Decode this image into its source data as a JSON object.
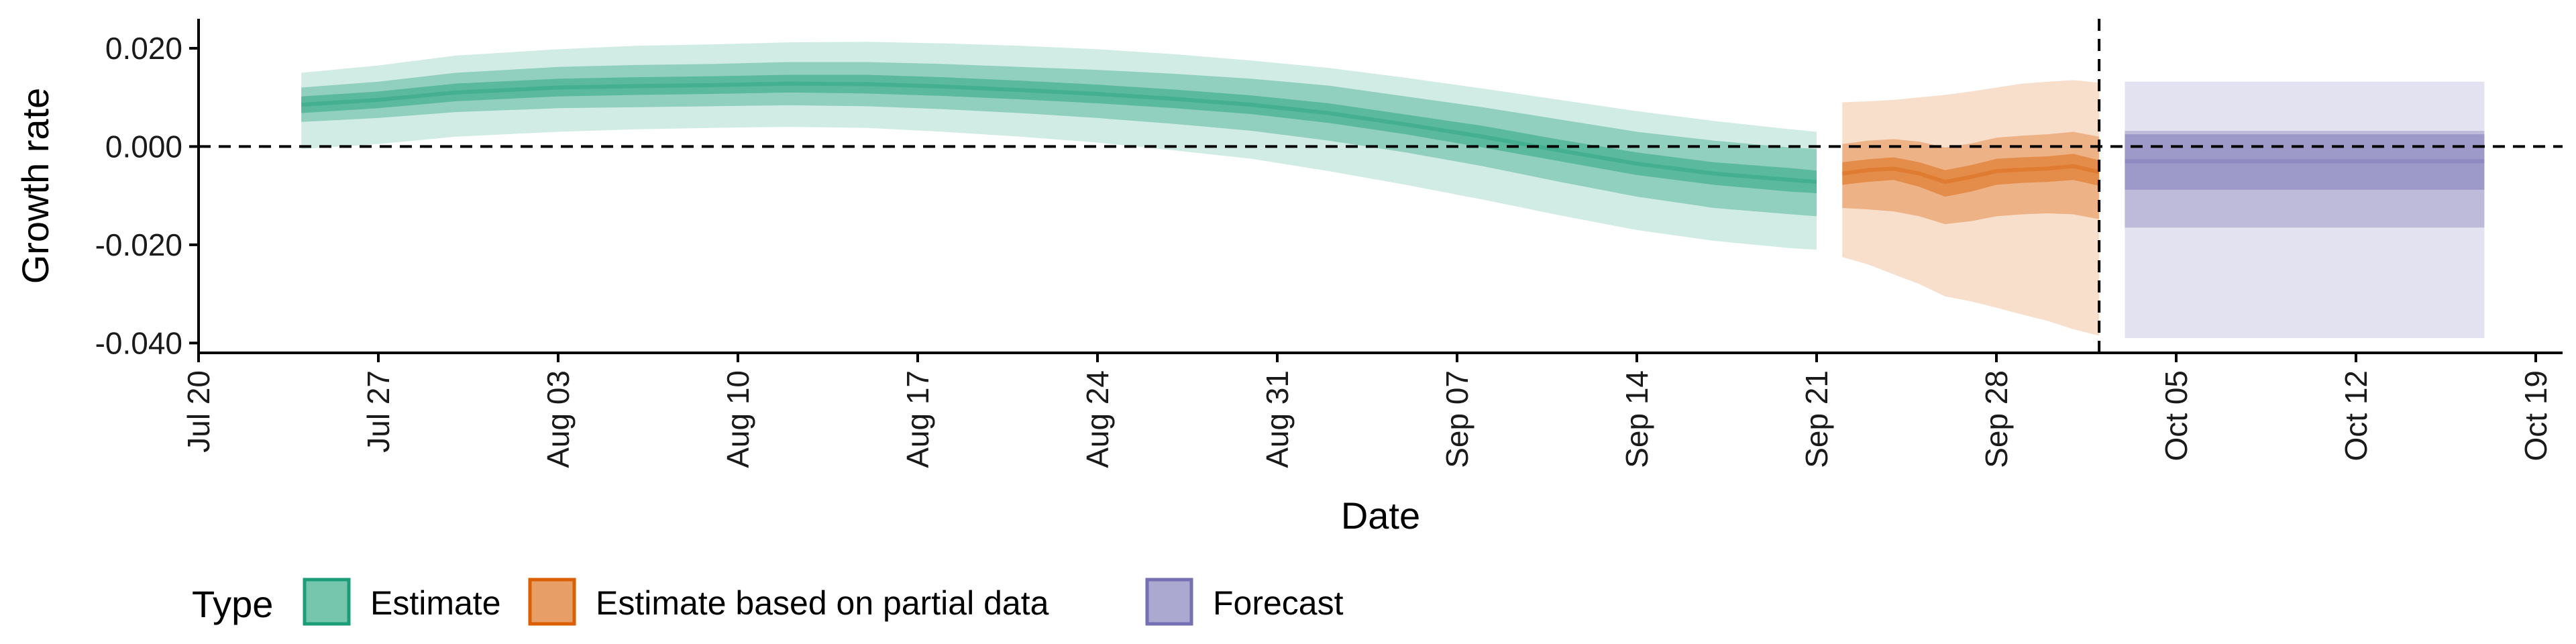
{
  "chart_data": {
    "type": "area",
    "xlabel": "Date",
    "ylabel": "Growth rate",
    "x_ticks": [
      "2020-07-20",
      "2020-07-27",
      "2020-08-03",
      "2020-08-10",
      "2020-08-17",
      "2020-08-24",
      "2020-08-31",
      "2020-09-07",
      "2020-09-14",
      "2020-09-21",
      "2020-09-28",
      "2020-10-05",
      "2020-10-12",
      "2020-10-19"
    ],
    "x_tick_labels": [
      "Jul 20",
      "Jul 27",
      "Aug 03",
      "Aug 10",
      "Aug 17",
      "Aug 24",
      "Aug 31",
      "Sep 07",
      "Sep 14",
      "Sep 21",
      "Sep 28",
      "Oct 05",
      "Oct 12",
      "Oct 19"
    ],
    "xlim": [
      "2020-07-20",
      "2020-10-19"
    ],
    "ylim": [
      -0.042,
      0.026
    ],
    "y_ticks": [
      0.02,
      0.0,
      -0.02,
      -0.04
    ],
    "y_tick_labels": [
      "0.020",
      "0.000",
      "-0.020",
      "-0.040"
    ],
    "reference_lines": [
      {
        "axis": "y",
        "value": 0.0,
        "style": "dashed"
      },
      {
        "axis": "x",
        "value": "2020-10-02",
        "style": "dashed"
      }
    ],
    "legend": {
      "title": "Type",
      "placement": "bottom",
      "entries": [
        "Estimate",
        "Estimate based on partial data",
        "Forecast"
      ]
    },
    "colors": {
      "Estimate": "#1b9e77",
      "Estimate based on partial data": "#d95f02",
      "Forecast": "#7570b3"
    },
    "series": [
      {
        "name": "Estimate",
        "x": [
          "2020-07-24",
          "2020-07-27",
          "2020-07-30",
          "2020-08-03",
          "2020-08-06",
          "2020-08-09",
          "2020-08-12",
          "2020-08-15",
          "2020-08-18",
          "2020-08-21",
          "2020-08-24",
          "2020-08-27",
          "2020-08-30",
          "2020-09-02",
          "2020-09-05",
          "2020-09-08",
          "2020-09-11",
          "2020-09-14",
          "2020-09-17",
          "2020-09-20",
          "2020-09-21"
        ],
        "median": [
          0.0085,
          0.0095,
          0.011,
          0.012,
          0.0123,
          0.0125,
          0.0128,
          0.0127,
          0.0122,
          0.0115,
          0.0107,
          0.0097,
          0.0085,
          0.0068,
          0.0045,
          0.002,
          -0.0008,
          -0.0035,
          -0.0055,
          -0.0068,
          -0.0072
        ],
        "lower_20": [
          0.0068,
          0.0078,
          0.0092,
          0.0102,
          0.0105,
          0.0107,
          0.011,
          0.0108,
          0.0103,
          0.0096,
          0.0088,
          0.0078,
          0.0066,
          0.0048,
          0.0025,
          -0.0002,
          -0.003,
          -0.0058,
          -0.0078,
          -0.0092,
          -0.0095
        ],
        "upper_20": [
          0.0102,
          0.0112,
          0.0128,
          0.0138,
          0.0141,
          0.0143,
          0.0146,
          0.0146,
          0.0141,
          0.0134,
          0.0126,
          0.0116,
          0.0104,
          0.0088,
          0.0065,
          0.0042,
          0.0014,
          -0.0012,
          -0.0032,
          -0.0044,
          -0.0049
        ],
        "lower_50": [
          0.005,
          0.0058,
          0.007,
          0.0078,
          0.008,
          0.0082,
          0.0084,
          0.0082,
          0.0076,
          0.0068,
          0.0058,
          0.0046,
          0.0032,
          0.0012,
          -0.0012,
          -0.004,
          -0.0072,
          -0.0102,
          -0.0125,
          -0.0138,
          -0.0142
        ],
        "upper_50": [
          0.012,
          0.0132,
          0.015,
          0.0162,
          0.0166,
          0.0168,
          0.0172,
          0.0172,
          0.0168,
          0.0162,
          0.0156,
          0.0148,
          0.0138,
          0.0124,
          0.0102,
          0.008,
          0.0055,
          0.003,
          0.0012,
          -0.0002,
          -0.0005
        ],
        "lower_90": [
          -0.0005,
          0.0005,
          0.002,
          0.003,
          0.0035,
          0.0038,
          0.004,
          0.0038,
          0.003,
          0.002,
          0.0008,
          -0.0008,
          -0.0025,
          -0.005,
          -0.0078,
          -0.0108,
          -0.014,
          -0.017,
          -0.0192,
          -0.0207,
          -0.021
        ],
        "upper_90": [
          0.015,
          0.0165,
          0.0185,
          0.0198,
          0.0205,
          0.0208,
          0.0212,
          0.0213,
          0.021,
          0.0205,
          0.0198,
          0.0188,
          0.0175,
          0.016,
          0.014,
          0.0118,
          0.0095,
          0.0072,
          0.0052,
          0.0035,
          0.003
        ]
      },
      {
        "name": "Estimate based on partial data",
        "x": [
          "2020-09-22",
          "2020-09-23",
          "2020-09-24",
          "2020-09-25",
          "2020-09-26",
          "2020-09-27",
          "2020-09-28",
          "2020-09-29",
          "2020-09-30",
          "2020-10-01",
          "2020-10-02"
        ],
        "median": [
          -0.0055,
          -0.0048,
          -0.0045,
          -0.0055,
          -0.0072,
          -0.0062,
          -0.005,
          -0.0047,
          -0.0045,
          -0.004,
          -0.0052
        ],
        "lower_20": [
          -0.0078,
          -0.0072,
          -0.0068,
          -0.0082,
          -0.0102,
          -0.0092,
          -0.0078,
          -0.0074,
          -0.0072,
          -0.0068,
          -0.008
        ],
        "upper_20": [
          -0.0032,
          -0.0026,
          -0.0022,
          -0.0032,
          -0.0048,
          -0.0038,
          -0.0025,
          -0.0022,
          -0.002,
          -0.0015,
          -0.0028
        ],
        "lower_50": [
          -0.0125,
          -0.0128,
          -0.0132,
          -0.0142,
          -0.0158,
          -0.0152,
          -0.0142,
          -0.0138,
          -0.0136,
          -0.0138,
          -0.0148
        ],
        "upper_50": [
          0.0005,
          0.0012,
          0.0015,
          0.001,
          -0.0002,
          0.0006,
          0.0018,
          0.0022,
          0.0025,
          0.003,
          0.002
        ],
        "lower_90": [
          -0.0225,
          -0.024,
          -0.026,
          -0.028,
          -0.0305,
          -0.0315,
          -0.0328,
          -0.0342,
          -0.0355,
          -0.0372,
          -0.0385
        ],
        "upper_90": [
          0.009,
          0.0092,
          0.0095,
          0.01,
          0.0105,
          0.0112,
          0.012,
          0.0128,
          0.0132,
          0.0135,
          0.013
        ]
      },
      {
        "name": "Forecast",
        "x": [
          "2020-10-03",
          "2020-10-17"
        ],
        "median": [
          -0.003,
          -0.003
        ],
        "lower_20": [
          -0.0088,
          -0.0088
        ],
        "upper_20": [
          0.0025,
          0.0025
        ],
        "lower_50": [
          -0.0165,
          -0.0165
        ],
        "upper_50": [
          0.0032,
          0.0032
        ],
        "lower_90": [
          -0.039,
          -0.039
        ],
        "upper_90": [
          0.0132,
          0.0132
        ]
      }
    ]
  }
}
